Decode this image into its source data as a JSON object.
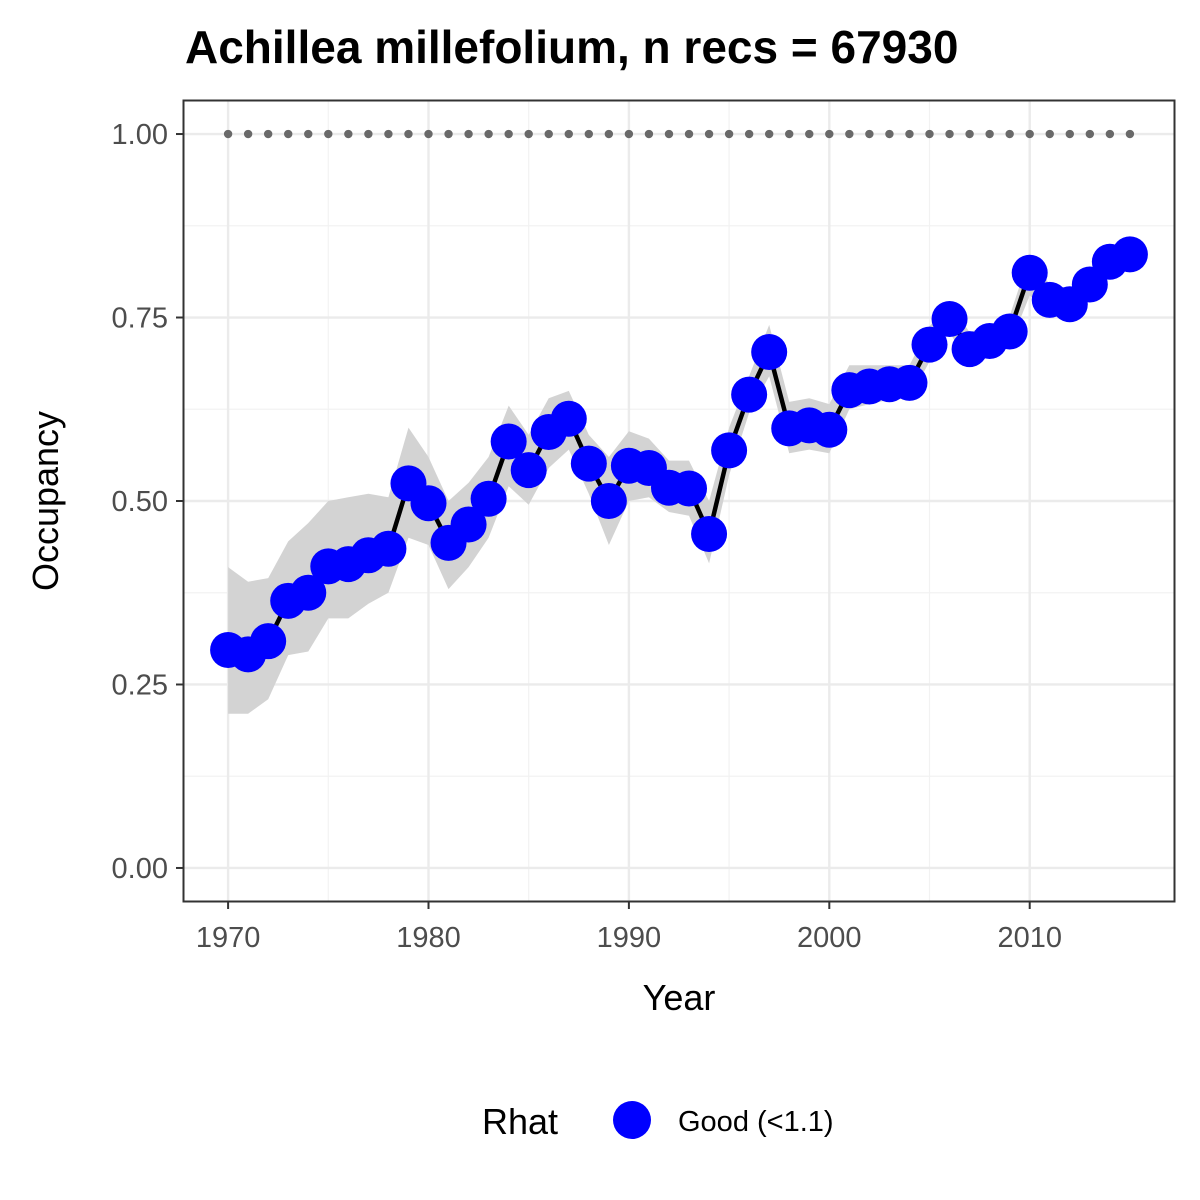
{
  "chart_data": {
    "type": "line",
    "title": "Achillea millefolium, n recs = 67930",
    "xlabel": "Year",
    "ylabel": "Occupancy",
    "xlim": [
      1967.8,
      2017.2
    ],
    "ylim": [
      -0.045,
      1.045
    ],
    "x_ticks": [
      1970,
      1980,
      1990,
      2000,
      2010
    ],
    "x_tick_labels": [
      "1970",
      "1980",
      "1990",
      "2000",
      "2010"
    ],
    "y_ticks": [
      0,
      0.25,
      0.5,
      0.75,
      1.0
    ],
    "y_tick_labels": [
      "0.00",
      "0.25",
      "0.50",
      "0.75",
      "1.00"
    ],
    "grid": true,
    "legend_position": "bottom",
    "legend": {
      "title": "Rhat",
      "entries": [
        {
          "label": "Good (<1.1)",
          "color": "#0000ff"
        }
      ]
    },
    "colors": {
      "points": "#0000ff",
      "line": "#000000",
      "ribbon": "#d3d3d3",
      "reference": "#696969"
    },
    "reference_line": {
      "y": 1.0,
      "style": "dotted"
    },
    "series": [
      {
        "x": [
          1970,
          1971,
          1972,
          1973,
          1974,
          1975,
          1976,
          1977,
          1978,
          1979,
          1980,
          1981,
          1982,
          1983,
          1984,
          1985,
          1986,
          1987,
          1988,
          1989,
          1990,
          1991,
          1992,
          1993,
          1994,
          1995,
          1996,
          1997,
          1998,
          1999,
          2000,
          2001,
          2002,
          2003,
          2004,
          2005,
          2006,
          2007,
          2008,
          2009,
          2010,
          2011,
          2012,
          2013,
          2014,
          2015
        ],
        "y": [
          0.297,
          0.291,
          0.309,
          0.364,
          0.375,
          0.411,
          0.414,
          0.426,
          0.435,
          0.524,
          0.497,
          0.443,
          0.468,
          0.503,
          0.581,
          0.542,
          0.594,
          0.612,
          0.551,
          0.5,
          0.548,
          0.545,
          0.518,
          0.517,
          0.455,
          0.569,
          0.645,
          0.703,
          0.599,
          0.603,
          0.597,
          0.651,
          0.656,
          0.659,
          0.661,
          0.713,
          0.748,
          0.707,
          0.718,
          0.731,
          0.811,
          0.774,
          0.768,
          0.795,
          0.826,
          0.836
        ],
        "lower": [
          0.21,
          0.21,
          0.23,
          0.29,
          0.295,
          0.34,
          0.34,
          0.36,
          0.375,
          0.45,
          0.44,
          0.38,
          0.41,
          0.45,
          0.52,
          0.495,
          0.545,
          0.57,
          0.51,
          0.44,
          0.5,
          0.505,
          0.485,
          0.48,
          0.415,
          0.535,
          0.62,
          0.67,
          0.565,
          0.57,
          0.565,
          0.625,
          0.632,
          0.638,
          0.64,
          0.69,
          0.73,
          0.685,
          0.7,
          0.712,
          0.78,
          0.755,
          0.75,
          0.78,
          0.81,
          0.82
        ],
        "upper": [
          0.41,
          0.39,
          0.395,
          0.445,
          0.47,
          0.5,
          0.505,
          0.51,
          0.505,
          0.6,
          0.56,
          0.5,
          0.525,
          0.56,
          0.63,
          0.59,
          0.64,
          0.65,
          0.59,
          0.56,
          0.595,
          0.585,
          0.555,
          0.555,
          0.5,
          0.6,
          0.67,
          0.74,
          0.635,
          0.64,
          0.632,
          0.685,
          0.685,
          0.685,
          0.685,
          0.738,
          0.77,
          0.73,
          0.74,
          0.752,
          0.835,
          0.795,
          0.79,
          0.812,
          0.843,
          0.852
        ]
      }
    ]
  }
}
